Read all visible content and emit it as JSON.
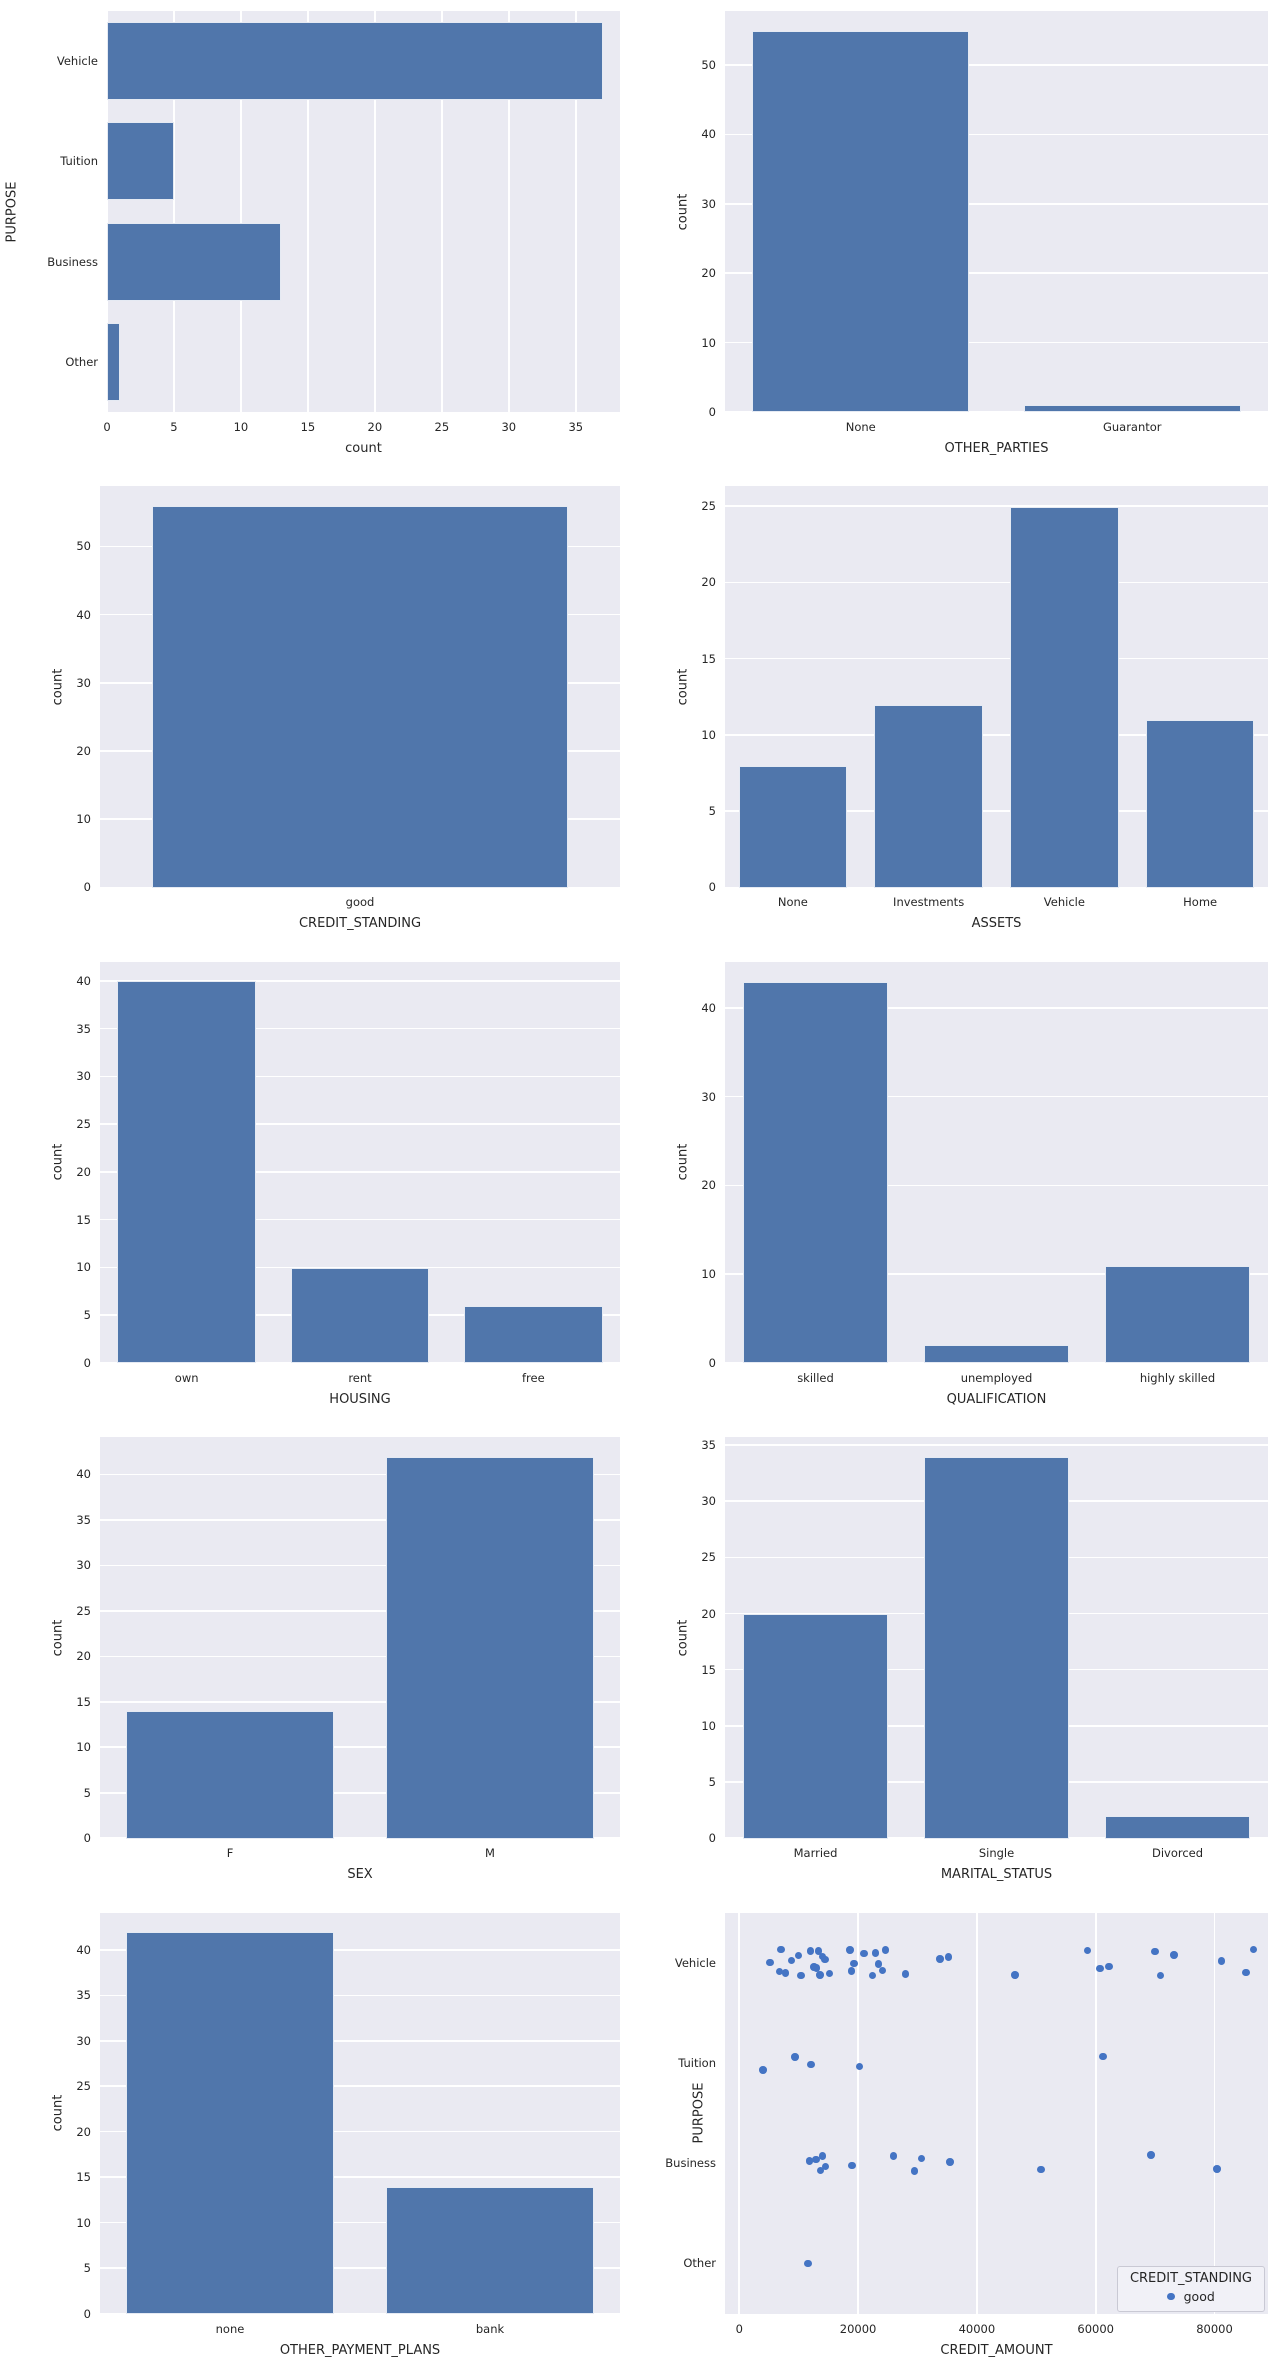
{
  "colors": {
    "bar": "#5076ab",
    "dot": "#4474c4",
    "plot_bg": "#eaeaf2",
    "grid": "#ffffff",
    "text": "#262626",
    "legend_bg": "#f1f1f7",
    "legend_border": "#c9c9d4"
  },
  "chart_data": [
    {
      "type": "bar",
      "orientation": "horizontal",
      "categories": [
        "Vehicle",
        "Tuition",
        "Business",
        "Other"
      ],
      "values": [
        37,
        5,
        13,
        1
      ],
      "xlabel": "count",
      "ylabel": "PURPOSE",
      "xticks": [
        0,
        5,
        10,
        15,
        20,
        25,
        30,
        35
      ],
      "xlim": [
        0,
        38.3
      ],
      "grid": true
    },
    {
      "type": "bar",
      "categories": [
        "None",
        "Guarantor"
      ],
      "values": [
        55,
        1
      ],
      "xlabel": "OTHER_PARTIES",
      "ylabel": "count",
      "yticks": [
        0,
        10,
        20,
        30,
        40,
        50
      ],
      "ylim": [
        0,
        57.8
      ],
      "grid": true
    },
    {
      "type": "bar",
      "categories": [
        "good"
      ],
      "values": [
        56
      ],
      "xlabel": "CREDIT_STANDING",
      "ylabel": "count",
      "yticks": [
        0,
        10,
        20,
        30,
        40,
        50
      ],
      "ylim": [
        0,
        58.8
      ],
      "grid": true
    },
    {
      "type": "bar",
      "categories": [
        "None",
        "Investments",
        "Vehicle",
        "Home"
      ],
      "values": [
        8,
        12,
        25,
        11
      ],
      "xlabel": "ASSETS",
      "ylabel": "count",
      "yticks": [
        0,
        5,
        10,
        15,
        20,
        25
      ],
      "ylim": [
        0,
        26.3
      ],
      "grid": true
    },
    {
      "type": "bar",
      "categories": [
        "own",
        "rent",
        "free"
      ],
      "values": [
        40,
        10,
        6
      ],
      "xlabel": "HOUSING",
      "ylabel": "count",
      "yticks": [
        0,
        5,
        10,
        15,
        20,
        25,
        30,
        35,
        40
      ],
      "ylim": [
        0,
        42
      ],
      "grid": true
    },
    {
      "type": "bar",
      "categories": [
        "skilled",
        "unemployed",
        "highly skilled"
      ],
      "values": [
        43,
        2,
        11
      ],
      "xlabel": "QUALIFICATION",
      "ylabel": "count",
      "yticks": [
        0,
        10,
        20,
        30,
        40
      ],
      "ylim": [
        0,
        45.2
      ],
      "grid": true
    },
    {
      "type": "bar",
      "categories": [
        "F",
        "M"
      ],
      "values": [
        14,
        42
      ],
      "xlabel": "SEX",
      "ylabel": "count",
      "yticks": [
        0,
        5,
        10,
        15,
        20,
        25,
        30,
        35,
        40
      ],
      "ylim": [
        0,
        44.1
      ],
      "grid": true
    },
    {
      "type": "bar",
      "categories": [
        "Married",
        "Single",
        "Divorced"
      ],
      "values": [
        20,
        34,
        2
      ],
      "xlabel": "MARITAL_STATUS",
      "ylabel": "count",
      "yticks": [
        0,
        5,
        10,
        15,
        20,
        25,
        30,
        35
      ],
      "ylim": [
        0,
        35.7
      ],
      "grid": true
    },
    {
      "type": "bar",
      "categories": [
        "none",
        "bank"
      ],
      "values": [
        42,
        14
      ],
      "xlabel": "OTHER_PAYMENT_PLANS",
      "ylabel": "count",
      "yticks": [
        0,
        5,
        10,
        15,
        20,
        25,
        30,
        35,
        40
      ],
      "ylim": [
        0,
        44.1
      ],
      "grid": true
    },
    {
      "type": "scatter",
      "xlabel": "CREDIT_AMOUNT",
      "ylabel": "PURPOSE",
      "xticks": [
        0,
        20000,
        40000,
        60000,
        80000
      ],
      "xlim": [
        -2400,
        89000
      ],
      "grid": true,
      "legend": {
        "title": "CREDIT_STANDING",
        "position": "lower right",
        "entries": [
          {
            "label": "good",
            "marker": "dot"
          }
        ]
      },
      "series": [
        {
          "category": "Vehicle",
          "amounts": [
            5200,
            6800,
            7000,
            7800,
            8800,
            10000,
            10400,
            12000,
            12600,
            13000,
            13300,
            13600,
            14000,
            14400,
            15200,
            18600,
            18900,
            19300,
            21000,
            22400,
            22900,
            23400,
            24100,
            24600,
            28000,
            33800,
            35200,
            46400,
            58600,
            60700,
            62200,
            70000,
            70900,
            73200,
            81200,
            85300,
            86600
          ]
        },
        {
          "category": "Tuition",
          "amounts": [
            4000,
            9400,
            12100,
            20200,
            61200
          ]
        },
        {
          "category": "Business",
          "amounts": [
            11800,
            12900,
            13700,
            14000,
            14500,
            19000,
            26000,
            29500,
            30700,
            35500,
            50800,
            69300,
            80400
          ]
        },
        {
          "category": "Other",
          "amounts": [
            11600
          ]
        }
      ]
    }
  ]
}
